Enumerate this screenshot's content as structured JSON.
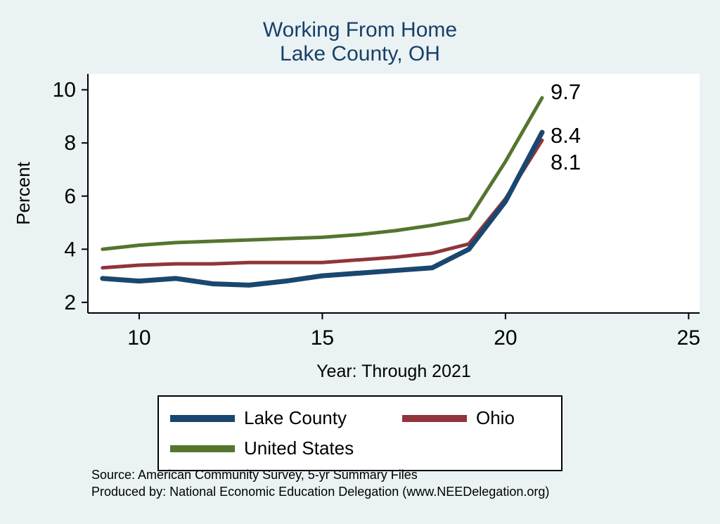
{
  "title": {
    "line1": "Working From Home",
    "line2": "Lake County, OH"
  },
  "axes": {
    "y_label": "Percent",
    "x_label": "Year: Through 2021",
    "y_ticks": [
      2,
      4,
      6,
      8,
      10
    ],
    "x_ticks": [
      10,
      15,
      20,
      25
    ]
  },
  "legend": {
    "items": [
      {
        "label": "Lake County",
        "color": "#1a476f"
      },
      {
        "label": "Ohio",
        "color": "#90353b"
      },
      {
        "label": "United States",
        "color": "#55752f"
      }
    ]
  },
  "notes": [
    "Source: American Community Survey, 5-yr Summary Files",
    "Produced by: National Economic Education Delegation (www.NEEDelegation.org)"
  ],
  "colors": {
    "background": "#eaf2f3",
    "plot_bg": "#ffffff",
    "title": "#17406a",
    "axis": "#000000"
  },
  "chart_data": {
    "type": "line",
    "title": "Working From Home — Lake County, OH",
    "xlabel": "Year: Through 2021",
    "ylabel": "Percent",
    "x": [
      9,
      10,
      11,
      12,
      13,
      14,
      15,
      16,
      17,
      18,
      19,
      20,
      21
    ],
    "series": [
      {
        "name": "Lake County",
        "color": "#1a476f",
        "width": 7,
        "end_label": "8.4",
        "values": [
          2.9,
          2.8,
          2.9,
          2.7,
          2.65,
          2.8,
          3.0,
          3.1,
          3.2,
          3.3,
          4.0,
          5.8,
          8.4
        ]
      },
      {
        "name": "Ohio",
        "color": "#90353b",
        "width": 5,
        "end_label": "8.1",
        "values": [
          3.3,
          3.4,
          3.45,
          3.45,
          3.5,
          3.5,
          3.5,
          3.6,
          3.7,
          3.85,
          4.2,
          5.9,
          8.1
        ]
      },
      {
        "name": "United States",
        "color": "#55752f",
        "width": 5,
        "end_label": "9.7",
        "values": [
          4.0,
          4.15,
          4.25,
          4.3,
          4.35,
          4.4,
          4.45,
          4.55,
          4.7,
          4.9,
          5.15,
          7.3,
          9.7
        ]
      }
    ],
    "draw_order": [
      2,
      1,
      0
    ],
    "xlim": [
      8.6,
      25.3
    ],
    "ylim": [
      1.6,
      10.6
    ],
    "grid": false,
    "legend_position": "bottom"
  }
}
